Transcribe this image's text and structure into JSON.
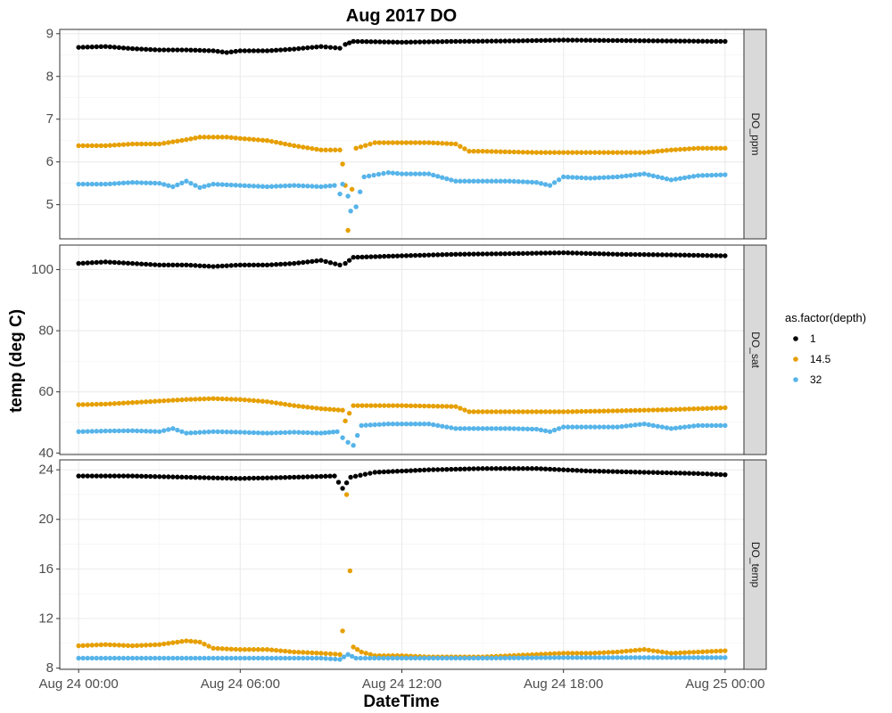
{
  "chart_data": {
    "type": "scatter",
    "title": "Aug 2017 DO",
    "xlabel": "DateTime",
    "ylabel": "temp (deg C)",
    "x_ticks": [
      "Aug 24 00:00",
      "Aug 24 06:00",
      "Aug 24 12:00",
      "Aug 24 18:00",
      "Aug 25 00:00"
    ],
    "x_range_hours": [
      -0.7,
      24.7
    ],
    "grid": true,
    "legend": {
      "title": "as.factor(depth)",
      "placement": "right",
      "items": [
        {
          "label": "1",
          "color": "#000000"
        },
        {
          "label": "14.5",
          "color": "#E69F00"
        },
        {
          "label": "32",
          "color": "#56B4E9"
        }
      ]
    },
    "panels": [
      {
        "strip": "DO_ppm",
        "ylim": [
          4.2,
          9.1
        ],
        "y_ticks": [
          5,
          6,
          7,
          8,
          9
        ],
        "series": [
          {
            "name": "1",
            "color": "#000000",
            "points": [
              [
                0,
                8.68
              ],
              [
                1,
                8.7
              ],
              [
                2,
                8.65
              ],
              [
                3,
                8.62
              ],
              [
                4,
                8.62
              ],
              [
                5,
                8.6
              ],
              [
                5.5,
                8.56
              ],
              [
                6,
                8.6
              ],
              [
                7,
                8.6
              ],
              [
                8,
                8.64
              ],
              [
                9,
                8.7
              ],
              [
                9.7,
                8.66
              ],
              [
                9.9,
                8.75
              ],
              [
                10.2,
                8.82
              ],
              [
                12,
                8.8
              ],
              [
                14,
                8.82
              ],
              [
                16,
                8.83
              ],
              [
                18,
                8.85
              ],
              [
                20,
                8.84
              ],
              [
                22,
                8.83
              ],
              [
                24,
                8.82
              ]
            ]
          },
          {
            "name": "14.5",
            "color": "#E69F00",
            "points": [
              [
                0,
                6.38
              ],
              [
                1,
                6.38
              ],
              [
                2,
                6.42
              ],
              [
                3,
                6.42
              ],
              [
                4,
                6.52
              ],
              [
                4.5,
                6.58
              ],
              [
                5.5,
                6.58
              ],
              [
                6,
                6.55
              ],
              [
                7,
                6.5
              ],
              [
                8,
                6.38
              ],
              [
                9,
                6.28
              ],
              [
                9.7,
                6.28
              ],
              [
                9.8,
                5.95
              ],
              [
                9.9,
                5.45
              ],
              [
                10,
                4.4
              ],
              [
                10.3,
                6.32
              ],
              [
                11,
                6.45
              ],
              [
                12,
                6.45
              ],
              [
                13,
                6.45
              ],
              [
                14,
                6.42
              ],
              [
                14.5,
                6.25
              ],
              [
                15,
                6.25
              ],
              [
                17,
                6.22
              ],
              [
                19,
                6.22
              ],
              [
                21,
                6.22
              ],
              [
                22,
                6.28
              ],
              [
                23,
                6.32
              ],
              [
                24,
                6.32
              ]
            ]
          },
          {
            "name": "32",
            "color": "#56B4E9",
            "points": [
              [
                0,
                5.48
              ],
              [
                1,
                5.48
              ],
              [
                2,
                5.52
              ],
              [
                3,
                5.5
              ],
              [
                3.5,
                5.42
              ],
              [
                4,
                5.55
              ],
              [
                4.5,
                5.4
              ],
              [
                5,
                5.48
              ],
              [
                6,
                5.45
              ],
              [
                7,
                5.42
              ],
              [
                8,
                5.45
              ],
              [
                9,
                5.42
              ],
              [
                9.5,
                5.45
              ],
              [
                9.7,
                5.25
              ],
              [
                9.8,
                5.48
              ],
              [
                10,
                5.2
              ],
              [
                10.1,
                4.85
              ],
              [
                10.3,
                4.95
              ],
              [
                10.6,
                5.65
              ],
              [
                11.5,
                5.75
              ],
              [
                12,
                5.72
              ],
              [
                13,
                5.72
              ],
              [
                14,
                5.55
              ],
              [
                15,
                5.55
              ],
              [
                16,
                5.55
              ],
              [
                17,
                5.52
              ],
              [
                17.5,
                5.45
              ],
              [
                18,
                5.65
              ],
              [
                19,
                5.62
              ],
              [
                20,
                5.65
              ],
              [
                21,
                5.72
              ],
              [
                22,
                5.58
              ],
              [
                23,
                5.68
              ],
              [
                24,
                5.7
              ]
            ]
          }
        ]
      },
      {
        "strip": "DO_sat",
        "ylim": [
          39.5,
          108
        ],
        "y_ticks": [
          40,
          60,
          80,
          100
        ],
        "series": [
          {
            "name": "1",
            "color": "#000000",
            "points": [
              [
                0,
                102
              ],
              [
                1,
                102.5
              ],
              [
                2,
                102
              ],
              [
                3,
                101.5
              ],
              [
                4,
                101.5
              ],
              [
                5,
                101
              ],
              [
                6,
                101.5
              ],
              [
                7,
                101.5
              ],
              [
                8,
                102
              ],
              [
                9,
                103
              ],
              [
                9.7,
                101.5
              ],
              [
                9.9,
                102
              ],
              [
                10.2,
                104
              ],
              [
                12,
                104.5
              ],
              [
                14,
                105
              ],
              [
                16,
                105.2
              ],
              [
                18,
                105.5
              ],
              [
                20,
                105
              ],
              [
                22,
                104.8
              ],
              [
                24,
                104.5
              ]
            ]
          },
          {
            "name": "14.5",
            "color": "#E69F00",
            "points": [
              [
                0,
                55.8
              ],
              [
                1,
                56
              ],
              [
                2,
                56.5
              ],
              [
                3,
                57
              ],
              [
                4,
                57.5
              ],
              [
                5,
                57.8
              ],
              [
                6,
                57.5
              ],
              [
                7,
                56.8
              ],
              [
                8,
                55.5
              ],
              [
                9,
                54.5
              ],
              [
                9.8,
                54
              ],
              [
                9.9,
                50.5
              ],
              [
                10.2,
                55.5
              ],
              [
                12,
                55.5
              ],
              [
                14,
                55.2
              ],
              [
                14.5,
                53.5
              ],
              [
                16,
                53.5
              ],
              [
                18,
                53.5
              ],
              [
                20,
                53.8
              ],
              [
                22,
                54.2
              ],
              [
                24,
                54.8
              ]
            ]
          },
          {
            "name": "32",
            "color": "#56B4E9",
            "points": [
              [
                0,
                47
              ],
              [
                1,
                47.2
              ],
              [
                2,
                47.3
              ],
              [
                3,
                47
              ],
              [
                3.5,
                48
              ],
              [
                4,
                46.5
              ],
              [
                5,
                47
              ],
              [
                6,
                46.8
              ],
              [
                7,
                46.5
              ],
              [
                8,
                46.8
              ],
              [
                9,
                46.5
              ],
              [
                9.6,
                47
              ],
              [
                9.8,
                45
              ],
              [
                10,
                43.5
              ],
              [
                10.2,
                42.5
              ],
              [
                10.5,
                49
              ],
              [
                11.5,
                49.5
              ],
              [
                12,
                49.5
              ],
              [
                13,
                49.5
              ],
              [
                14,
                48
              ],
              [
                15,
                48
              ],
              [
                16,
                48
              ],
              [
                17,
                47.8
              ],
              [
                17.5,
                47
              ],
              [
                18,
                48.5
              ],
              [
                19,
                48.5
              ],
              [
                20,
                48.5
              ],
              [
                21,
                49.5
              ],
              [
                22,
                48
              ],
              [
                23,
                49
              ],
              [
                24,
                49
              ]
            ]
          }
        ]
      },
      {
        "strip": "DO_temp",
        "ylim": [
          7.9,
          24.8
        ],
        "y_ticks": [
          8,
          12,
          16,
          20,
          24
        ],
        "series": [
          {
            "name": "1",
            "color": "#000000",
            "points": [
              [
                0,
                23.5
              ],
              [
                2,
                23.5
              ],
              [
                4,
                23.4
              ],
              [
                6,
                23.3
              ],
              [
                8,
                23.4
              ],
              [
                9.5,
                23.5
              ],
              [
                9.8,
                22.5
              ],
              [
                10.1,
                23.4
              ],
              [
                11,
                23.8
              ],
              [
                13,
                24
              ],
              [
                15,
                24.1
              ],
              [
                17,
                24.1
              ],
              [
                19,
                23.9
              ],
              [
                21,
                23.8
              ],
              [
                23,
                23.7
              ],
              [
                24,
                23.6
              ]
            ]
          },
          {
            "name": "14.5",
            "color": "#E69F00",
            "points": [
              [
                0,
                9.8
              ],
              [
                1,
                9.9
              ],
              [
                2,
                9.8
              ],
              [
                3,
                9.9
              ],
              [
                4,
                10.2
              ],
              [
                4.5,
                10.1
              ],
              [
                5,
                9.6
              ],
              [
                6,
                9.5
              ],
              [
                7,
                9.5
              ],
              [
                8,
                9.3
              ],
              [
                9,
                9.2
              ],
              [
                9.7,
                9.1
              ],
              [
                9.8,
                11
              ],
              [
                9.95,
                22
              ],
              [
                10.2,
                9.7
              ],
              [
                10.5,
                9.3
              ],
              [
                11,
                9
              ],
              [
                12,
                9
              ],
              [
                13,
                8.9
              ],
              [
                14,
                8.9
              ],
              [
                15,
                8.9
              ],
              [
                16,
                9
              ],
              [
                17,
                9.1
              ],
              [
                18,
                9.2
              ],
              [
                19,
                9.2
              ],
              [
                20,
                9.3
              ],
              [
                21,
                9.5
              ],
              [
                22,
                9.2
              ],
              [
                23,
                9.3
              ],
              [
                24,
                9.4
              ]
            ]
          },
          {
            "name": "32",
            "color": "#56B4E9",
            "points": [
              [
                0,
                8.8
              ],
              [
                3,
                8.8
              ],
              [
                6,
                8.8
              ],
              [
                9,
                8.8
              ],
              [
                9.7,
                8.7
              ],
              [
                10,
                9.1
              ],
              [
                10.3,
                8.8
              ],
              [
                12,
                8.8
              ],
              [
                15,
                8.8
              ],
              [
                18,
                8.85
              ],
              [
                21,
                8.85
              ],
              [
                24,
                8.85
              ]
            ]
          }
        ]
      }
    ]
  }
}
